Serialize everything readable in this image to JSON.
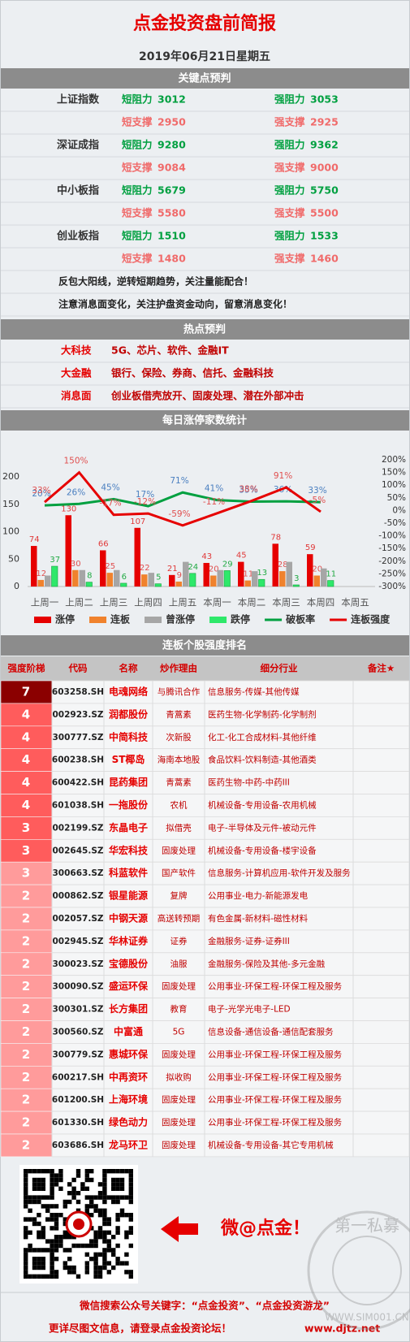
{
  "header": {
    "title": "点金投资盘前简报",
    "date": "2019年06月21日星期五"
  },
  "key_points": {
    "title": "关键点预判",
    "indices": [
      {
        "name": "上证指数",
        "rows": [
          [
            {
              "label": "短阻力",
              "value": 3012
            },
            {
              "label": "强阻力",
              "value": 3053
            }
          ],
          [
            {
              "label": "短支撑",
              "value": 2950
            },
            {
              "label": "强支撑",
              "value": 2925
            }
          ]
        ]
      },
      {
        "name": "深证成指",
        "rows": [
          [
            {
              "label": "短阻力",
              "value": 9280
            },
            {
              "label": "强阻力",
              "value": 9362
            }
          ],
          [
            {
              "label": "短支撑",
              "value": 9084
            },
            {
              "label": "强支撑",
              "value": 9000
            }
          ]
        ]
      },
      {
        "name": "中小板指",
        "rows": [
          [
            {
              "label": "短阻力",
              "value": 5679
            },
            {
              "label": "强阻力",
              "value": 5750
            }
          ],
          [
            {
              "label": "短支撑",
              "value": 5580
            },
            {
              "label": "强支撑",
              "value": 5500
            }
          ]
        ]
      },
      {
        "name": "创业板指",
        "rows": [
          [
            {
              "label": "短阻力",
              "value": 1510
            },
            {
              "label": "强阻力",
              "value": 1533
            }
          ],
          [
            {
              "label": "短支撑",
              "value": 1480
            },
            {
              "label": "强支撑",
              "value": 1460
            }
          ]
        ]
      }
    ],
    "notes": [
      "反包大阳线，逆转短期趋势，关注量能配合！",
      "注意消息面变化，关注护盘资金动向，留意消息变化！"
    ]
  },
  "hot_spots": {
    "title": "热点预判",
    "rows": [
      {
        "label": "大科技",
        "content": "5G、芯片、软件、金融IT"
      },
      {
        "label": "大金融",
        "content": "银行、保险、券商、信托、金融科技"
      },
      {
        "label": "消息面",
        "content": "创业板借壳放开、固废处理、潜在外部冲击"
      }
    ]
  },
  "chart_section_title": "每日涨停家数统计",
  "chart_data": {
    "type": "combo",
    "categories": [
      "上周一",
      "上周二",
      "上周三",
      "上周四",
      "上周五",
      "本周一",
      "本周二",
      "本周三",
      "本周四",
      "本周五"
    ],
    "series": [
      {
        "name": "涨停",
        "type": "bar",
        "color": "#e60000",
        "label_color": "#e03a3a",
        "values": [
          74,
          130,
          66,
          107,
          21,
          43,
          45,
          78,
          59,
          null
        ]
      },
      {
        "name": "连板",
        "type": "bar",
        "color": "#f0822d",
        "label_color": "#e05050",
        "values": [
          12,
          30,
          25,
          22,
          9,
          20,
          11,
          28,
          20,
          null
        ]
      },
      {
        "name": "曾涨停",
        "type": "bar",
        "color": "#a6a6a6",
        "values": [
          20,
          30,
          30,
          25,
          45,
          30,
          28,
          45,
          33,
          null
        ]
      },
      {
        "name": "跌停",
        "type": "bar",
        "color": "#2ee86a",
        "label_color": "#22aa44",
        "values": [
          37,
          8,
          6,
          5,
          24,
          29,
          13,
          3,
          11,
          null
        ]
      },
      {
        "name": "破板率",
        "type": "line",
        "axis": "y2",
        "color": "#00a040",
        "label_color": "#4a7fc0",
        "values": [
          20,
          26,
          45,
          17,
          71,
          41,
          35,
          36,
          33,
          null
        ],
        "value_labels": [
          "20%",
          "26%",
          "45%",
          "17%",
          "71%",
          "41%",
          "35%",
          "36%",
          "33%",
          null
        ]
      },
      {
        "name": "连板强度",
        "type": "line",
        "axis": "y2",
        "color": "#e60000",
        "label_color": "#e05050",
        "values": [
          33,
          150,
          -17,
          -12,
          -59,
          -11,
          38,
          91,
          -5,
          null
        ],
        "value_labels": [
          "33%",
          "150%",
          "-17%",
          "-12%",
          "-59%",
          "-11%",
          "38%",
          "91%",
          "-5%",
          null
        ]
      }
    ],
    "ylim": [
      0,
      200
    ],
    "yticks": [
      0,
      50,
      100,
      150,
      200
    ],
    "y2lim": [
      -300,
      200
    ],
    "y2ticks": [
      {
        "value": 200,
        "label": "200%"
      },
      {
        "value": 150,
        "label": "150%"
      },
      {
        "value": 100,
        "label": "100%"
      },
      {
        "value": 50,
        "label": "50%"
      },
      {
        "value": 0,
        "label": "0%"
      },
      {
        "value": -50,
        "label": "-50%"
      },
      {
        "value": -100,
        "label": "-100%"
      },
      {
        "value": -150,
        "label": "-150%"
      },
      {
        "value": -200,
        "label": "-200%"
      },
      {
        "value": -250,
        "label": "-250%"
      },
      {
        "value": -300,
        "label": "-300%"
      }
    ],
    "legend": "bottom"
  },
  "ranking": {
    "title": "连板个股强度排名",
    "columns": [
      "强度阶梯",
      "代码",
      "名称",
      "炒作理由",
      "细分行业",
      "备注★"
    ],
    "rows": [
      [
        7,
        "603258.SH",
        "电魂网络",
        "与腾讯合作",
        "信息服务-传媒-其他传媒"
      ],
      [
        4,
        "002923.SZ",
        "润都股份",
        "青蒿素",
        "医药生物-化学制药-化学制剂"
      ],
      [
        4,
        "300777.SZ",
        "中简科技",
        "次新股",
        "化工-化工合成材料-其他纤维"
      ],
      [
        4,
        "600238.SH",
        "ST椰岛",
        "海南本地股",
        "食品饮料-饮料制造-其他酒类"
      ],
      [
        4,
        "600422.SH",
        "昆药集团",
        "青蒿素",
        "医药生物-中药-中药III"
      ],
      [
        4,
        "601038.SH",
        "一拖股份",
        "农机",
        "机械设备-专用设备-农用机械"
      ],
      [
        3,
        "002199.SZ",
        "东晶电子",
        "拟借壳",
        "电子-半导体及元件-被动元件"
      ],
      [
        3,
        "002645.SZ",
        "华宏科技",
        "固废处理",
        "机械设备-专用设备-楼宇设备"
      ],
      [
        3,
        "300663.SZ",
        "科蓝软件",
        "国产软件",
        "信息服务-计算机应用-软件开发及服务"
      ],
      [
        2,
        "000862.SZ",
        "银星能源",
        "复牌",
        "公用事业-电力-新能源发电"
      ],
      [
        2,
        "002057.SZ",
        "中钢天源",
        "高送转预期",
        "有色金属-新材料-磁性材料"
      ],
      [
        2,
        "002945.SZ",
        "华林证券",
        "证券",
        "金融服务-证券-证券III"
      ],
      [
        2,
        "300023.SZ",
        "宝德股份",
        "油服",
        "金融服务-保险及其他-多元金融"
      ],
      [
        2,
        "300090.SZ",
        "盛运环保",
        "固废处理",
        "公用事业-环保工程-环保工程及服务"
      ],
      [
        2,
        "300301.SZ",
        "长方集团",
        "教育",
        "电子-光学光电子-LED"
      ],
      [
        2,
        "300560.SZ",
        "中富通",
        "5G",
        "信息设备-通信设备-通信配套服务"
      ],
      [
        2,
        "300779.SZ",
        "惠城环保",
        "固废处理",
        "公用事业-环保工程-环保工程及服务"
      ],
      [
        2,
        "600217.SH",
        "中再资环",
        "拟收购",
        "公用事业-环保工程-环保工程及服务"
      ],
      [
        2,
        "601200.SH",
        "上海环境",
        "固废处理",
        "公用事业-环保工程-环保工程及服务"
      ],
      [
        2,
        "601330.SH",
        "绿色动力",
        "固废处理",
        "公用事业-环保工程-环保工程及服务"
      ],
      [
        2,
        "603686.SH",
        "龙马环卫",
        "固废处理",
        "机械设备-专用设备-其它专用机械"
      ]
    ]
  },
  "promo": {
    "slogan": "微@点金！"
  },
  "watermark": {
    "name": "第一私募",
    "site": "WWW.SIM001.CN"
  },
  "footer": {
    "search": "微信搜索公众号关键字：“点金投资”、“点金投资游龙”",
    "more": "更详尽图文信息，请登录点金投资论坛！",
    "url": "www.djtz.net"
  }
}
